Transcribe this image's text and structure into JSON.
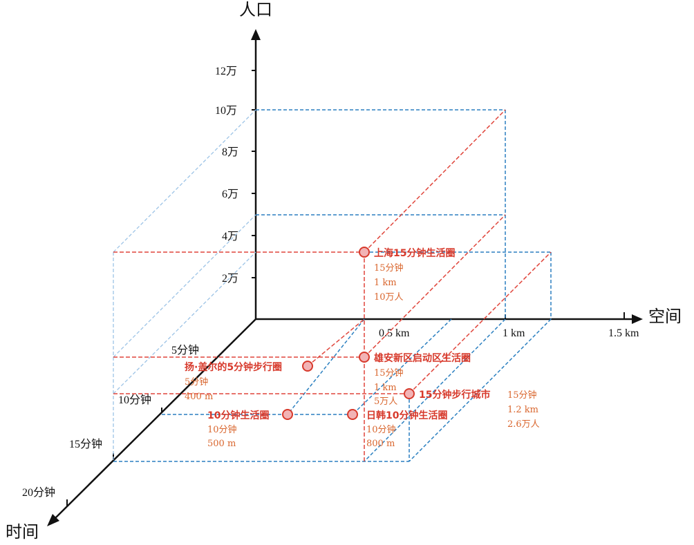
{
  "axes": {
    "population_label": "人口",
    "space_label": "空间",
    "time_label": "时间"
  },
  "population_ticks": [
    "2万",
    "4万",
    "6万",
    "8万",
    "10万",
    "12万"
  ],
  "space_ticks": [
    "0.5 km",
    "1 km",
    "1.5 km"
  ],
  "time_ticks": [
    "5分钟",
    "10分钟",
    "15分钟",
    "20分钟"
  ],
  "points": [
    {
      "title": "上海15分钟生活圈",
      "details": [
        "15分钟",
        "1 km",
        "10万人"
      ]
    },
    {
      "title": "雄安新区启动区生活圈",
      "details": [
        "15分钟",
        "1 km",
        "5万人"
      ]
    },
    {
      "title": "扬·盖尔的5分钟步行圈",
      "details": [
        "5分钟",
        "400 m"
      ]
    },
    {
      "title": "15分钟步行城市",
      "details": [
        "15分钟",
        "1.2 km",
        "2.6万人"
      ]
    },
    {
      "title": "10分钟生活圈",
      "details": [
        "10分钟",
        "500 m"
      ]
    },
    {
      "title": "日韩10分钟生活圈",
      "details": [
        "10分钟",
        "800 m"
      ]
    }
  ],
  "colors": {
    "red": "#e0443a",
    "blue": "#2a7fc0",
    "lightblue": "#9cc3e6",
    "dot_fill": "#f2b3b5",
    "dot_stroke": "#d7392b",
    "title_red": "#d7392b",
    "detail_orange": "#d9662e"
  }
}
